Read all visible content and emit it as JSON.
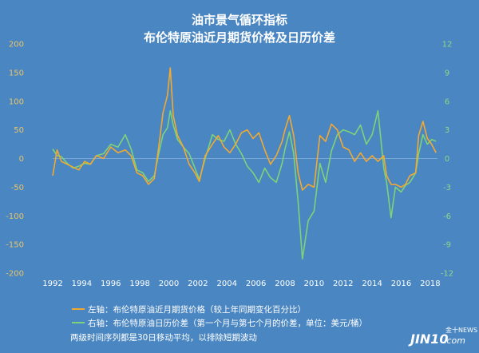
{
  "colors": {
    "background": "#4a86c1",
    "gold": "#f3a931",
    "green": "#7cd37a",
    "grid": "#7aa6d2",
    "left_axis_text": "#e7c46b",
    "right_axis_text": "#8fd88a"
  },
  "chart_data": {
    "type": "line",
    "title": "油市景气循环指标",
    "subtitle": "布伦特原油近月期货价格及日历价差",
    "x_ticks": [
      "1992",
      "1994",
      "1996",
      "1998",
      "2000",
      "2002",
      "2004",
      "2006",
      "2008",
      "2010",
      "2012",
      "2014",
      "2016",
      "2018"
    ],
    "xlim": [
      1992,
      2018.5
    ],
    "left_axis": {
      "ylim": [
        -200,
        200
      ],
      "ticks": [
        "200",
        "150",
        "100",
        "50",
        "0",
        "-50",
        "-100",
        "-150",
        "-200"
      ]
    },
    "right_axis": {
      "ylim": [
        -12,
        12
      ],
      "ticks": [
        "12",
        "9",
        "6",
        "3",
        "0",
        "-3",
        "-6",
        "-9",
        "-12"
      ]
    },
    "grid": false,
    "zero_line": true,
    "series": [
      {
        "name": "左轴：布伦特原油近月期货价格（较上年同期变化百分比）",
        "axis": "left",
        "color": "#f3a931",
        "x": [
          1992.0,
          1992.3,
          1992.6,
          1993.0,
          1993.4,
          1993.8,
          1994.2,
          1994.6,
          1995.0,
          1995.5,
          1996.0,
          1996.5,
          1997.0,
          1997.4,
          1997.8,
          1998.2,
          1998.6,
          1999.0,
          1999.3,
          1999.6,
          1999.9,
          2000.1,
          2000.3,
          2000.6,
          2001.0,
          2001.4,
          2001.8,
          2002.1,
          2002.5,
          2003.0,
          2003.4,
          2003.8,
          2004.2,
          2004.6,
          2005.0,
          2005.4,
          2005.8,
          2006.2,
          2006.6,
          2007.0,
          2007.4,
          2007.8,
          2008.0,
          2008.3,
          2008.6,
          2008.9,
          2009.2,
          2009.6,
          2010.0,
          2010.4,
          2010.8,
          2011.2,
          2011.6,
          2012.0,
          2012.4,
          2012.8,
          2013.2,
          2013.6,
          2014.0,
          2014.4,
          2014.8,
          2015.0,
          2015.3,
          2015.6,
          2016.0,
          2016.3,
          2016.6,
          2017.0,
          2017.2,
          2017.5,
          2017.8,
          2018.1,
          2018.4
        ],
        "y": [
          -30,
          15,
          -5,
          -10,
          -15,
          -20,
          -5,
          -10,
          5,
          0,
          20,
          10,
          15,
          5,
          -25,
          -30,
          -45,
          -35,
          20,
          80,
          110,
          158,
          75,
          40,
          20,
          -10,
          -25,
          -40,
          5,
          25,
          40,
          20,
          10,
          25,
          45,
          50,
          35,
          45,
          15,
          -10,
          5,
          30,
          50,
          75,
          40,
          -25,
          -55,
          -45,
          -50,
          40,
          30,
          60,
          50,
          20,
          15,
          -5,
          10,
          -5,
          5,
          -5,
          5,
          -30,
          -45,
          -45,
          -50,
          -45,
          -30,
          -25,
          40,
          65,
          35,
          25,
          10
        ]
      },
      {
        "name": "右轴：布伦特原油日历价差（第一个月与第七个月的价差，单位：美元/桶）",
        "axis": "right",
        "color": "#7cd37a",
        "x": [
          1992.0,
          1992.3,
          1992.6,
          1993.0,
          1993.4,
          1993.8,
          1994.2,
          1994.6,
          1995.0,
          1995.5,
          1996.0,
          1996.5,
          1997.0,
          1997.4,
          1997.8,
          1998.2,
          1998.6,
          1999.0,
          1999.3,
          1999.6,
          1999.9,
          2000.1,
          2000.3,
          2000.6,
          2001.0,
          2001.4,
          2001.8,
          2002.1,
          2002.5,
          2003.0,
          2003.4,
          2003.8,
          2004.2,
          2004.6,
          2005.0,
          2005.4,
          2005.8,
          2006.2,
          2006.6,
          2007.0,
          2007.4,
          2007.8,
          2008.0,
          2008.3,
          2008.6,
          2008.9,
          2009.2,
          2009.6,
          2010.0,
          2010.4,
          2010.8,
          2011.2,
          2011.6,
          2012.0,
          2012.4,
          2012.8,
          2013.2,
          2013.6,
          2014.0,
          2014.4,
          2014.8,
          2015.0,
          2015.3,
          2015.6,
          2016.0,
          2016.3,
          2016.6,
          2017.0,
          2017.2,
          2017.5,
          2017.8,
          2018.1,
          2018.4
        ],
        "y": [
          1.0,
          0.3,
          0.2,
          -0.5,
          -1.0,
          -0.8,
          -0.5,
          -0.6,
          0.3,
          0.5,
          1.5,
          1.2,
          2.5,
          1.0,
          -1.2,
          -1.5,
          -2.4,
          -1.8,
          0.5,
          2.5,
          3.2,
          5.0,
          3.5,
          2.0,
          1.2,
          0.5,
          -1.0,
          -2.2,
          0.0,
          2.5,
          2.0,
          1.8,
          3.0,
          1.5,
          0.5,
          -0.8,
          -1.5,
          -2.5,
          -1.0,
          -2.0,
          -2.5,
          -0.5,
          1.0,
          2.8,
          0.5,
          -4.5,
          -10.5,
          -6.5,
          -5.5,
          -0.5,
          -2.5,
          0.8,
          2.5,
          3.0,
          2.8,
          2.5,
          3.5,
          1.5,
          2.5,
          5.0,
          -1.0,
          -2.5,
          -6.2,
          -3.0,
          -3.5,
          -2.8,
          -2.5,
          -1.5,
          0.5,
          2.5,
          1.5,
          2.0,
          1.8
        ]
      }
    ]
  },
  "legend": {
    "gold_label": "左轴：布伦特原油近月期货价格（较上年同期变化百分比）",
    "green_label": "右轴：布伦特原油日历价差（第一个月与第七个月的价差，单位：美元/桶）"
  },
  "footnote": "两级时间序列都是30日移动平均，以排除短期波动",
  "brand": {
    "main": "JIN10",
    "suffix": ".com",
    "small": "金十NEWS"
  }
}
